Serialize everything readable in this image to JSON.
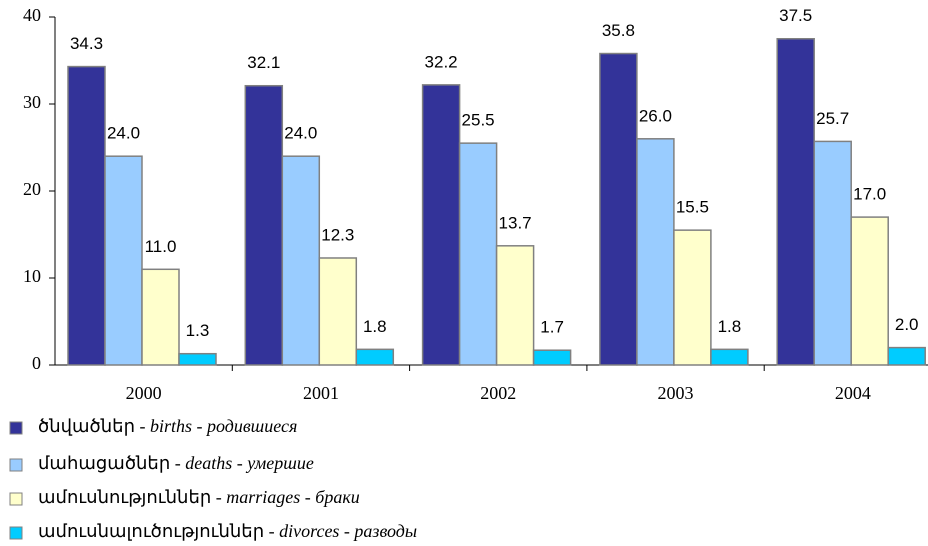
{
  "chart_data": {
    "type": "bar",
    "categories": [
      "2000",
      "2001",
      "2002",
      "2003",
      "2004"
    ],
    "series": [
      {
        "name": "ծնվածներ - births - родившиеся",
        "color": "#333399",
        "values": [
          34.3,
          32.1,
          32.2,
          35.8,
          37.5
        ],
        "value_labels": [
          "34.3",
          "32.1",
          "32.2",
          "35.8",
          "37.5"
        ]
      },
      {
        "name": "մահացածներ - deaths - умершие",
        "color": "#99ccff",
        "values": [
          24.0,
          24.0,
          25.5,
          26.0,
          25.7
        ],
        "value_labels": [
          "24.0",
          "24.0",
          "25.5",
          "26.0",
          "25.7"
        ]
      },
      {
        "name": "ամուսնություններ - marriages - браки",
        "color": "#ffffcc",
        "values": [
          11.0,
          12.3,
          13.7,
          15.5,
          17.0
        ],
        "value_labels": [
          "11.0",
          "12.3",
          "13.7",
          "15.5",
          "17.0"
        ]
      },
      {
        "name": "ամուսնալուծություններ - divorces - разводы",
        "color": "#00ccff",
        "values": [
          1.3,
          1.8,
          1.7,
          1.8,
          2.0
        ],
        "value_labels": [
          "1.3",
          "1.8",
          "1.7",
          "1.8",
          "2.0"
        ]
      }
    ],
    "ylim": [
      0,
      40
    ],
    "yticks": [
      0,
      10,
      20,
      30,
      40
    ],
    "grid": false,
    "legend": "bottom"
  }
}
